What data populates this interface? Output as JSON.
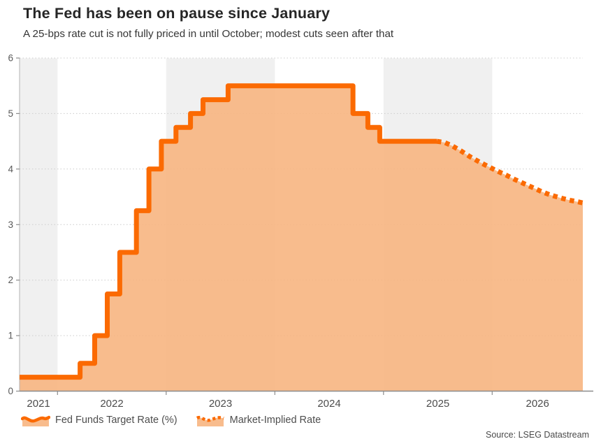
{
  "header": {
    "title": "The Fed has been on pause since January",
    "subtitle": "A 25-bps rate cut is not fully priced in until October; modest cuts seen after that"
  },
  "source": "Source: LSEG Datastream",
  "legend": {
    "items": [
      {
        "label": "Fed Funds Target Rate (%)",
        "style": "solid"
      },
      {
        "label": "Market-Implied Rate",
        "style": "dotted"
      }
    ]
  },
  "colors": {
    "line": "#fb6a02",
    "fill": "rgb(247,181,129)",
    "fill_opacity": 0.9,
    "band": "#f0f0f0",
    "grid": "#cccccc",
    "axis": "#8c8c8c",
    "y_axis_line": "#b3b3b3",
    "tick_label": "#595959",
    "x_label": "#4d4d4d",
    "title": "#262626",
    "subtitle": "#363636",
    "legend_text": "#4d4d4d"
  },
  "chart_data": {
    "type": "area",
    "title": "The Fed has been on pause since January",
    "subtitle": "A 25-bps rate cut is not fully priced in until October; modest cuts seen after that",
    "xlabel": "",
    "ylabel": "",
    "ylim": [
      0,
      6
    ],
    "y_ticks": [
      0,
      1,
      2,
      3,
      4,
      5,
      6
    ],
    "x_label_years": [
      2021,
      2022,
      2023,
      2024,
      2025,
      2026
    ],
    "x_tick_years": [
      2022,
      2023,
      2024,
      2025,
      2026
    ],
    "x_range": [
      2021.651,
      2026.834
    ],
    "grid": "dotted-horizontal",
    "legend_position": "bottom-left",
    "shaded_year_bands": [
      [
        2021.651,
        2022
      ],
      [
        2023,
        2024
      ],
      [
        2025,
        2026
      ]
    ],
    "series": [
      {
        "name": "Fed Funds Target Rate (%)",
        "style": "step-solid",
        "steps": [
          [
            2021.651,
            0.25
          ],
          [
            2022.208,
            0.5
          ],
          [
            2022.342,
            1.0
          ],
          [
            2022.458,
            1.75
          ],
          [
            2022.573,
            2.5
          ],
          [
            2022.726,
            3.25
          ],
          [
            2022.841,
            4.0
          ],
          [
            2022.956,
            4.5
          ],
          [
            2023.09,
            4.75
          ],
          [
            2023.224,
            5.0
          ],
          [
            2023.339,
            5.25
          ],
          [
            2023.57,
            5.5
          ],
          [
            2024.719,
            5.0
          ],
          [
            2024.856,
            4.75
          ],
          [
            2024.965,
            4.5
          ]
        ],
        "end_x": 2025.49
      },
      {
        "name": "Market-Implied Rate",
        "style": "dotted",
        "points": [
          [
            2025.49,
            4.5
          ],
          [
            2025.56,
            4.48
          ],
          [
            2025.63,
            4.42
          ],
          [
            2025.71,
            4.33
          ],
          [
            2025.79,
            4.23
          ],
          [
            2025.88,
            4.13
          ],
          [
            2025.96,
            4.05
          ],
          [
            2026.04,
            3.97
          ],
          [
            2026.13,
            3.89
          ],
          [
            2026.21,
            3.81
          ],
          [
            2026.29,
            3.74
          ],
          [
            2026.38,
            3.66
          ],
          [
            2026.46,
            3.59
          ],
          [
            2026.54,
            3.53
          ],
          [
            2026.63,
            3.48
          ],
          [
            2026.71,
            3.44
          ],
          [
            2026.79,
            3.41
          ],
          [
            2026.834,
            3.39
          ]
        ]
      }
    ]
  }
}
